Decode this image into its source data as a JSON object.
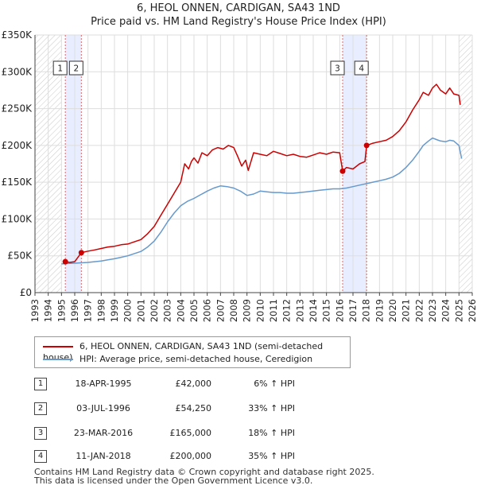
{
  "title": "6, HEOL ONNEN, CARDIGAN, SA43 1ND",
  "subtitle": "Price paid vs. HM Land Registry's House Price Index (HPI)",
  "chart_data": {
    "type": "line",
    "title": "6, HEOL ONNEN, CARDIGAN, SA43 1ND",
    "subtitle": "Price paid vs. HM Land Registry's House Price Index (HPI)",
    "ylim": [
      0,
      350000
    ],
    "xlim": [
      1993,
      2026
    ],
    "y_ticks": [
      0,
      50000,
      100000,
      150000,
      200000,
      250000,
      300000,
      350000
    ],
    "y_tick_labels": [
      "£0",
      "£50K",
      "£100K",
      "£150K",
      "£200K",
      "£250K",
      "£300K",
      "£350K"
    ],
    "x_ticks": [
      1993,
      1994,
      1995,
      1996,
      1997,
      1998,
      1999,
      2000,
      2001,
      2002,
      2003,
      2004,
      2005,
      2006,
      2007,
      2008,
      2009,
      2010,
      2011,
      2012,
      2013,
      2014,
      2015,
      2016,
      2017,
      2018,
      2019,
      2020,
      2021,
      2022,
      2023,
      2024,
      2025,
      2026
    ],
    "x_tick_labels": [
      "1993",
      "1994",
      "1995",
      "1996",
      "1997",
      "1998",
      "1999",
      "2000",
      "2001",
      "2002",
      "2003",
      "2004",
      "2005",
      "2006",
      "2007",
      "2008",
      "2009",
      "2010",
      "2011",
      "2012",
      "2013",
      "2014",
      "2015",
      "2016",
      "2017",
      "2018",
      "2019",
      "2020",
      "2021",
      "2022",
      "2023",
      "2024",
      "2025",
      "2026"
    ],
    "grid": true,
    "series": [
      {
        "name": "6, HEOL ONNEN, CARDIGAN, SA43 1ND (semi-detached house)",
        "color": "#cc0000",
        "x": [
          1995.29,
          1995.6,
          1996.0,
          1996.5,
          1996.9,
          1997.5,
          1998.0,
          1998.5,
          1999.0,
          1999.5,
          2000.0,
          2000.5,
          2001.0,
          2001.5,
          2002.0,
          2002.5,
          2003.0,
          2003.5,
          2004.0,
          2004.3,
          2004.6,
          2004.8,
          2005.0,
          2005.3,
          2005.6,
          2006.0,
          2006.4,
          2006.8,
          2007.2,
          2007.6,
          2008.0,
          2008.3,
          2008.6,
          2008.9,
          2009.1,
          2009.5,
          2010.0,
          2010.5,
          2011.0,
          2011.5,
          2012.0,
          2012.5,
          2013.0,
          2013.5,
          2014.0,
          2014.5,
          2015.0,
          2015.5,
          2016.0,
          2016.22,
          2016.5,
          2017.0,
          2017.5,
          2017.9,
          2018.03,
          2018.5,
          2019.0,
          2019.5,
          2020.0,
          2020.5,
          2021.0,
          2021.5,
          2022.0,
          2022.3,
          2022.7,
          2023.0,
          2023.3,
          2023.6,
          2024.0,
          2024.3,
          2024.6,
          2025.0,
          2025.1
        ],
        "values": [
          42000,
          41000,
          42000,
          54250,
          56000,
          58000,
          60000,
          62000,
          63000,
          65000,
          66000,
          69000,
          72000,
          80000,
          90000,
          105000,
          120000,
          135000,
          150000,
          175000,
          168000,
          178000,
          183000,
          176000,
          190000,
          186000,
          194000,
          197000,
          195000,
          200000,
          197000,
          185000,
          172000,
          180000,
          166000,
          190000,
          188000,
          186000,
          192000,
          189000,
          186000,
          188000,
          185000,
          184000,
          187000,
          190000,
          188000,
          191000,
          190000,
          165000,
          170000,
          168000,
          175000,
          178000,
          200000,
          203000,
          205000,
          207000,
          212000,
          220000,
          232000,
          248000,
          262000,
          272000,
          268000,
          278000,
          283000,
          275000,
          270000,
          278000,
          270000,
          268000,
          255000
        ]
      },
      {
        "name": "HPI: Average price, semi-detached house, Ceredigion",
        "color": "#6699cc",
        "x": [
          1995.0,
          1995.5,
          1996.0,
          1996.5,
          1997.0,
          1997.5,
          1998.0,
          1998.5,
          1999.0,
          1999.5,
          2000.0,
          2000.5,
          2001.0,
          2001.5,
          2002.0,
          2002.5,
          2003.0,
          2003.5,
          2004.0,
          2004.5,
          2005.0,
          2005.5,
          2006.0,
          2006.5,
          2007.0,
          2007.5,
          2008.0,
          2008.5,
          2009.0,
          2009.5,
          2010.0,
          2010.5,
          2011.0,
          2011.5,
          2012.0,
          2012.5,
          2013.0,
          2013.5,
          2014.0,
          2014.5,
          2015.0,
          2015.5,
          2016.0,
          2016.5,
          2017.0,
          2017.5,
          2018.0,
          2018.5,
          2019.0,
          2019.5,
          2020.0,
          2020.5,
          2021.0,
          2021.5,
          2022.0,
          2022.3,
          2022.7,
          2023.0,
          2023.3,
          2023.6,
          2024.0,
          2024.3,
          2024.6,
          2025.0,
          2025.2
        ],
        "values": [
          39000,
          39500,
          40000,
          40500,
          41000,
          42000,
          43000,
          44500,
          46000,
          48000,
          50000,
          53000,
          56000,
          62000,
          70000,
          82000,
          96000,
          108000,
          118000,
          124000,
          128000,
          133000,
          138000,
          142000,
          145000,
          144000,
          142000,
          138000,
          132000,
          134000,
          138000,
          137000,
          136000,
          136000,
          135000,
          135000,
          136000,
          137000,
          138000,
          139000,
          140000,
          141000,
          141000,
          142000,
          144000,
          146000,
          148000,
          150000,
          152000,
          154000,
          157000,
          162000,
          170000,
          180000,
          192000,
          200000,
          206000,
          210000,
          208000,
          206000,
          205000,
          207000,
          206000,
          200000,
          182000
        ]
      }
    ],
    "sales": [
      {
        "num": "1",
        "x": 1995.29,
        "price": 42000
      },
      {
        "num": "2",
        "x": 1996.5,
        "price": 54250
      },
      {
        "num": "3",
        "x": 2016.22,
        "price": 165000
      },
      {
        "num": "4",
        "x": 2018.03,
        "price": 200000
      }
    ],
    "shaded_ranges": [
      [
        1995.29,
        1996.5
      ],
      [
        2016.22,
        2018.03
      ]
    ],
    "hatched_ranges": [
      [
        1993.0,
        1995.0
      ],
      [
        2025.0,
        2026.0
      ]
    ]
  },
  "legend": {
    "series1": "6, HEOL ONNEN, CARDIGAN, SA43 1ND (semi-detached house)",
    "series2": "HPI: Average price, semi-detached house, Ceredigion"
  },
  "sales_table": [
    {
      "num": "1",
      "date": "18-APR-1995",
      "price": "£42,000",
      "hpi": "6% ↑ HPI"
    },
    {
      "num": "2",
      "date": "03-JUL-1996",
      "price": "£54,250",
      "hpi": "33% ↑ HPI"
    },
    {
      "num": "3",
      "date": "23-MAR-2016",
      "price": "£165,000",
      "hpi": "18% ↑ HPI"
    },
    {
      "num": "4",
      "date": "11-JAN-2018",
      "price": "£200,000",
      "hpi": "35% ↑ HPI"
    }
  ],
  "footer": {
    "line1": "Contains HM Land Registry data © Crown copyright and database right 2025.",
    "line2": "This data is licensed under the Open Government Licence v3.0."
  },
  "colors": {
    "price_line": "#cc0000",
    "hpi_line": "#6699cc",
    "shade": "#e8eeff",
    "grid": "#dddddd"
  }
}
